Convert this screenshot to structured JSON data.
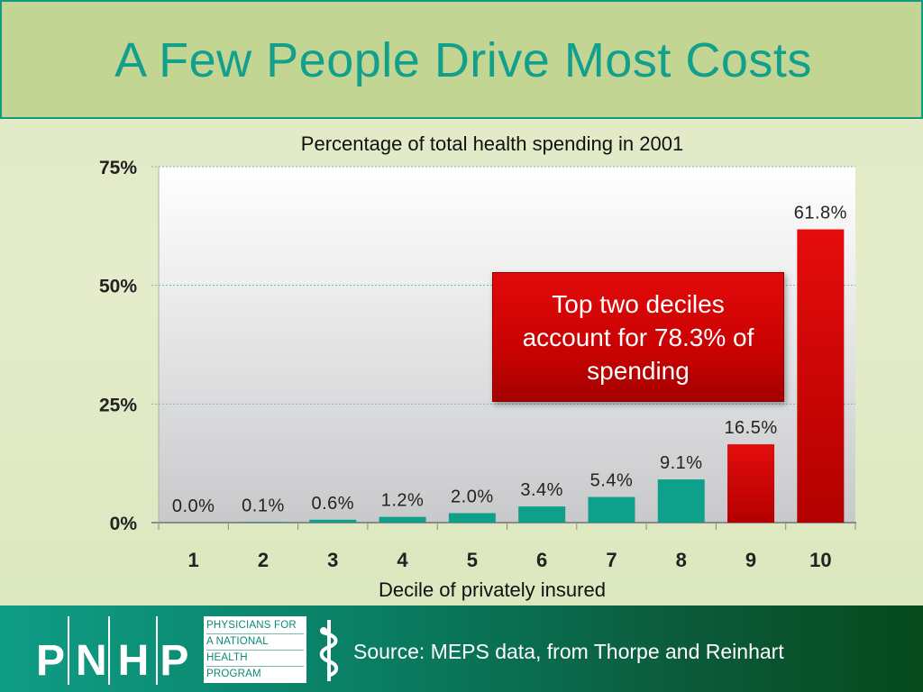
{
  "slide": {
    "title": "A Few People Drive Most Costs"
  },
  "callout": {
    "text": "Top two deciles account for 78.3% of spending"
  },
  "footer": {
    "logo_letters": "PNHP",
    "logo_lines": [
      "PHYSICIANS FOR",
      "A NATIONAL",
      "HEALTH",
      "PROGRAM"
    ],
    "source": "Source: MEPS data, from Thorpe and Reinhart"
  },
  "chart_data": {
    "type": "bar",
    "title": "Percentage of total health spending in 2001",
    "xlabel": "Decile of privately insured",
    "ylabel": "",
    "categories": [
      "1",
      "2",
      "3",
      "4",
      "5",
      "6",
      "7",
      "8",
      "9",
      "10"
    ],
    "values": [
      0.0,
      0.1,
      0.6,
      1.2,
      2.0,
      3.4,
      5.4,
      9.1,
      16.5,
      61.8
    ],
    "data_labels": [
      "0.0%",
      "0.1%",
      "0.6%",
      "1.2%",
      "2.0%",
      "3.4%",
      "5.4%",
      "9.1%",
      "16.5%",
      "61.8%"
    ],
    "ylim": [
      0,
      75
    ],
    "yticks": [
      0,
      25,
      50,
      75
    ],
    "ytick_labels": [
      "0%",
      "25%",
      "50%",
      "75%"
    ],
    "grid": true,
    "colors": {
      "teal": "#0fa08c",
      "red": "#d20505"
    },
    "highlighted_categories": [
      "9",
      "10"
    ]
  }
}
